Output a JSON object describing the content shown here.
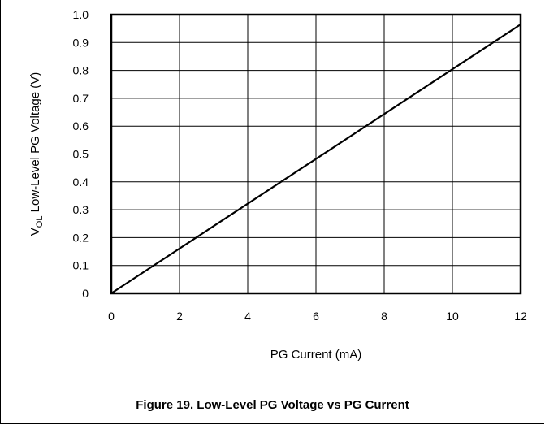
{
  "caption": "Figure 19. Low-Level PG Voltage vs PG Current",
  "chart_data": {
    "type": "line",
    "xlabel": "PG Current (mA)",
    "ylabel_main": "V",
    "ylabel_sub": "OL",
    "ylabel_rest": " Low-Level PG Voltage (V)",
    "xlim": [
      0,
      12
    ],
    "ylim": [
      0,
      1.0
    ],
    "xticks": [
      "0",
      "2",
      "4",
      "6",
      "8",
      "10",
      "12"
    ],
    "yticks": [
      "0",
      "0.1",
      "0.2",
      "0.3",
      "0.4",
      "0.5",
      "0.6",
      "0.7",
      "0.8",
      "0.9",
      "1.0"
    ],
    "grid": true,
    "series": [
      {
        "x": [
          0,
          12
        ],
        "y": [
          0,
          0.965
        ]
      }
    ]
  }
}
